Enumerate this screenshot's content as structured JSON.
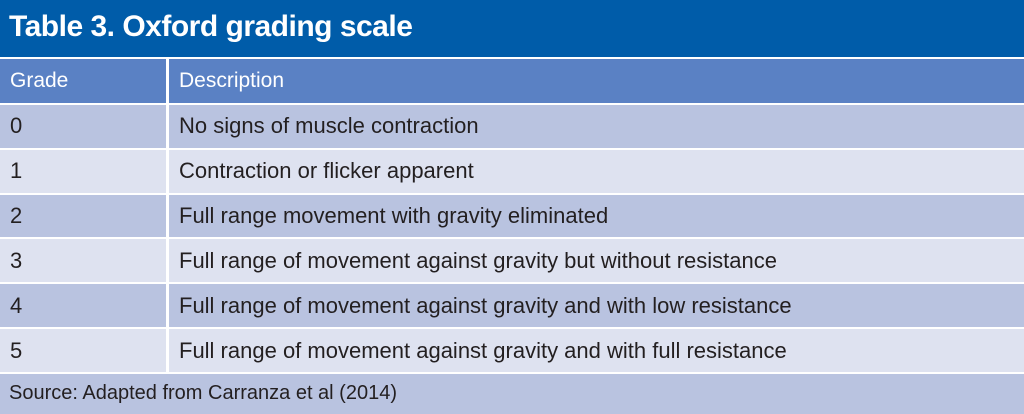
{
  "table": {
    "title": "Table 3. Oxford grading scale",
    "columns": {
      "grade": "Grade",
      "description": "Description"
    },
    "rows": [
      {
        "grade": "0",
        "description": "No signs of muscle contraction"
      },
      {
        "grade": "1",
        "description": "Contraction or flicker apparent"
      },
      {
        "grade": "2",
        "description": "Full range movement with gravity eliminated"
      },
      {
        "grade": "3",
        "description": "Full range of movement against gravity but without resistance"
      },
      {
        "grade": "4",
        "description": "Full range of movement against gravity and with low resistance"
      },
      {
        "grade": "5",
        "description": "Full range of movement against gravity and with full resistance"
      }
    ],
    "source": "Source: Adapted from Carranza et al (2014)"
  },
  "colors": {
    "title_bg": "#005ca9",
    "header_bg": "#5a81c4",
    "row_dark_bg": "#b9c3e0",
    "row_light_bg": "#dee2f0",
    "footer_bg": "#b9c3e0",
    "title_text": "#ffffff",
    "header_text": "#ffffff",
    "body_text": "#231f20",
    "separator": "#ffffff"
  }
}
